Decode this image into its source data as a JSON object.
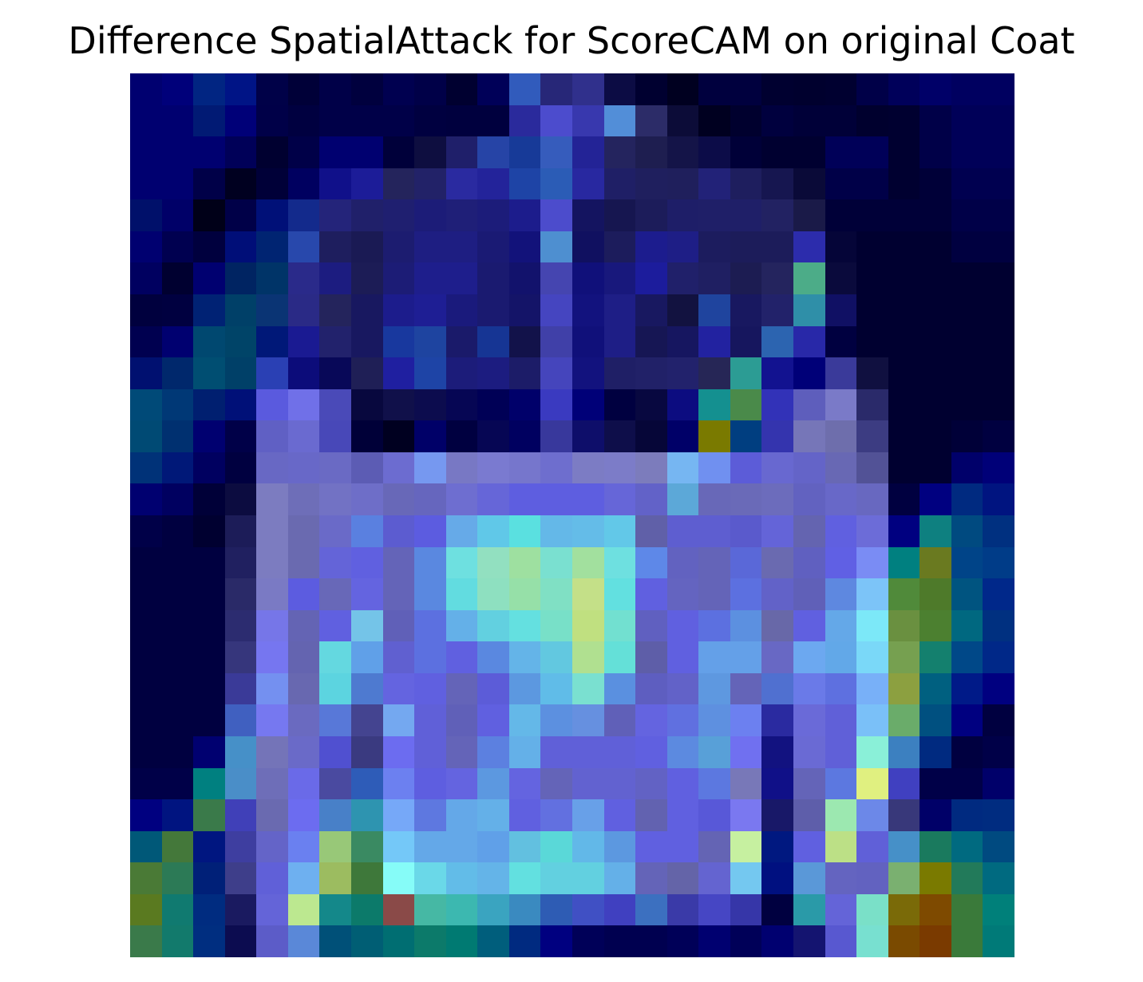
{
  "title": "Difference SpatialAttack for ScoreCAM on original Coat",
  "image": {
    "description_free": true,
    "grid_size": 28,
    "pixels": [
      [
        "#000070",
        "#00007a",
        "#012582",
        "#001486",
        "#000148",
        "#000038",
        "#000048",
        "#00003e",
        "#000050",
        "#000048",
        "#000030",
        "#000058",
        "#315bbc",
        "#272778",
        "#30308c",
        "#0c0c44",
        "#000030",
        "#000020",
        "#00003e",
        "#00003e",
        "#000030",
        "#00002e",
        "#000030",
        "#000048",
        "#00005a",
        "#000068",
        "#000060",
        "#000060"
      ],
      [
        "#000070",
        "#000070",
        "#011a74",
        "#000078",
        "#000048",
        "#000040",
        "#000048",
        "#000048",
        "#000048",
        "#000040",
        "#00003e",
        "#00003e",
        "#2a2a9c",
        "#4c4ccd",
        "#3838ae",
        "#528ed8",
        "#2c2c68",
        "#0c0c38",
        "#000020",
        "#00002e",
        "#00003e",
        "#000038",
        "#000038",
        "#00002e",
        "#000030",
        "#000048",
        "#000058",
        "#000058"
      ],
      [
        "#000070",
        "#000070",
        "#000070",
        "#000058",
        "#000030",
        "#000048",
        "#000070",
        "#000070",
        "#00003a",
        "#0e0e40",
        "#1f1f6a",
        "#2644a6",
        "#173a98",
        "#365cbc",
        "#232396",
        "#24245e",
        "#1e1e50",
        "#141448",
        "#0c0c48",
        "#000038",
        "#000030",
        "#000030",
        "#000058",
        "#000058",
        "#000030",
        "#000048",
        "#000058",
        "#000058"
      ],
      [
        "#000070",
        "#000070",
        "#000048",
        "#000020",
        "#000038",
        "#000060",
        "#10108a",
        "#1c1c98",
        "#24245c",
        "#222268",
        "#2a2aa0",
        "#23239a",
        "#1e44a6",
        "#2b5cb6",
        "#2828a0",
        "#1f1f66",
        "#1f1f5e",
        "#1f1f5c",
        "#222278",
        "#1e1e5e",
        "#161650",
        "#0a0a38",
        "#000048",
        "#000048",
        "#000030",
        "#000038",
        "#000050",
        "#000050"
      ],
      [
        "#00106a",
        "#000068",
        "#000018",
        "#000048",
        "#001078",
        "#132a8c",
        "#24247a",
        "#20206a",
        "#1f1f70",
        "#1c1c78",
        "#1f1f78",
        "#1c1c7a",
        "#1c1c8c",
        "#4c4ccc",
        "#141460",
        "#161650",
        "#1c1c5a",
        "#1e1e68",
        "#1f1f68",
        "#1f1f68",
        "#222262",
        "#1a1a48",
        "#000038",
        "#000038",
        "#000038",
        "#000038",
        "#000048",
        "#000048"
      ],
      [
        "#000070",
        "#000050",
        "#00003e",
        "#000e78",
        "#002472",
        "#2848ac",
        "#1e1e5e",
        "#1a1a54",
        "#1c1c70",
        "#1e1e82",
        "#1e1e82",
        "#1a1a74",
        "#12127a",
        "#4e8fd0",
        "#101060",
        "#1c1c5c",
        "#1c1c8e",
        "#1e1e86",
        "#1c1c5e",
        "#1c1c5a",
        "#1c1c5a",
        "#2c2cac",
        "#050538",
        "#000030",
        "#000030",
        "#000030",
        "#000040",
        "#000040"
      ],
      [
        "#000060",
        "#000030",
        "#000070",
        "#002462",
        "#003468",
        "#2a2a8a",
        "#1c1c80",
        "#1c1c56",
        "#1c1c76",
        "#1e1e8c",
        "#1e1e8c",
        "#1a1a70",
        "#12126c",
        "#4545b0",
        "#10107a",
        "#18187c",
        "#1c1c9c",
        "#20206a",
        "#1f1f62",
        "#1c1c52",
        "#24245e",
        "#4cac88",
        "#0a0a3c",
        "#000030",
        "#000030",
        "#000030",
        "#000030",
        "#000030"
      ],
      [
        "#00003e",
        "#000040",
        "#002274",
        "#004068",
        "#0a3474",
        "#2a2a86",
        "#24245c",
        "#181860",
        "#1c1c8c",
        "#1e1e94",
        "#1a1a7c",
        "#1a1a70",
        "#141468",
        "#4545c0",
        "#12127e",
        "#1e1e86",
        "#181860",
        "#121240",
        "#1f449e",
        "#181860",
        "#22226a",
        "#2f8fa8",
        "#101064",
        "#000030",
        "#000030",
        "#000030",
        "#000030",
        "#000030"
      ],
      [
        "#000050",
        "#000070",
        "#004870",
        "#004468",
        "#001878",
        "#1a1a92",
        "#22226c",
        "#181860",
        "#18389e",
        "#1e44a0",
        "#1a1a6a",
        "#163594",
        "#12124a",
        "#4040a8",
        "#10107a",
        "#1e1e86",
        "#161654",
        "#161660",
        "#2222a0",
        "#16165e",
        "#2c64b0",
        "#2828a8",
        "#000040",
        "#000030",
        "#000030",
        "#000030",
        "#000030",
        "#000030"
      ],
      [
        "#001070",
        "#00286c",
        "#004e72",
        "#004068",
        "#2a40b4",
        "#0c0c7a",
        "#080858",
        "#1f1f56",
        "#1f1fa0",
        "#1e44a6",
        "#1c1c7a",
        "#1c1c80",
        "#1c1c68",
        "#4545bc",
        "#12127e",
        "#1f1f66",
        "#212168",
        "#22226c",
        "#262656",
        "#2c9c94",
        "#121290",
        "#000078",
        "#3a3a9a",
        "#101040",
        "#000030",
        "#000030",
        "#000030",
        "#000030"
      ],
      [
        "#004a78",
        "#003876",
        "#001f70",
        "#001078",
        "#5a5ade",
        "#7070e8",
        "#4a4ab8",
        "#08083e",
        "#10104a",
        "#0c0c4e",
        "#060654",
        "#000056",
        "#00006a",
        "#3a3ac0",
        "#000078",
        "#000040",
        "#080840",
        "#0c0c80",
        "#149090",
        "#4a8a4a",
        "#3232b8",
        "#5e5ebc",
        "#7a7ac8",
        "#2a2a6a",
        "#000030",
        "#000030",
        "#000030",
        "#000030"
      ],
      [
        "#004a74",
        "#003070",
        "#000070",
        "#000048",
        "#6060c4",
        "#6a6ad0",
        "#4848b8",
        "#000038",
        "#000020",
        "#000068",
        "#000040",
        "#060654",
        "#000060",
        "#38389c",
        "#0e0e6a",
        "#0e0e4a",
        "#060638",
        "#000068",
        "#7a7a00",
        "#003e80",
        "#3434ae",
        "#7676b8",
        "#6e6eac",
        "#3c3c82",
        "#000030",
        "#000030",
        "#000038",
        "#000040"
      ],
      [
        "#003278",
        "#001878",
        "#000060",
        "#000040",
        "#6868c4",
        "#6868c8",
        "#6a6ac4",
        "#5c5cb4",
        "#6c6cd0",
        "#7698f0",
        "#7878c4",
        "#7a7ad0",
        "#7676cc",
        "#6e6ece",
        "#7c7cc4",
        "#7c7cc8",
        "#7c7cbc",
        "#76b6f2",
        "#7090f0",
        "#5c5cd8",
        "#6868d0",
        "#6464c8",
        "#6868b4",
        "#525296",
        "#000030",
        "#000030",
        "#00006a",
        "#000078"
      ],
      [
        "#000070",
        "#000060",
        "#000038",
        "#0c0c40",
        "#7c7cc0",
        "#6e6eb8",
        "#7272c4",
        "#6e6ec8",
        "#6868b8",
        "#6666be",
        "#6e6ed0",
        "#6666d8",
        "#5e5ee0",
        "#5e5ee0",
        "#5e5ee0",
        "#6666d8",
        "#6262c8",
        "#5ca8d8",
        "#6868b8",
        "#6a6ab8",
        "#6c6cbc",
        "#6262c0",
        "#6868c8",
        "#6868c0",
        "#000040",
        "#000080",
        "#002a80",
        "#001480"
      ],
      [
        "#000048",
        "#000040",
        "#000030",
        "#1c1c58",
        "#7c7cc0",
        "#6a6ab0",
        "#6a6ac8",
        "#5a80e0",
        "#5c5cd0",
        "#5c5ce0",
        "#66aae8",
        "#60c8e8",
        "#5ae0e0",
        "#64b8e8",
        "#64bce8",
        "#62c8e8",
        "#6060a8",
        "#5e5ed0",
        "#5e5ed0",
        "#5a5acc",
        "#6464d8",
        "#6464b0",
        "#6060e0",
        "#6c6cd8",
        "#000080",
        "#0e8080",
        "#004a80",
        "#003080"
      ],
      [
        "#000040",
        "#000040",
        "#000040",
        "#202060",
        "#7c7cc0",
        "#6a6ab0",
        "#6464d8",
        "#6060e0",
        "#6464b8",
        "#5a88e0",
        "#6ee0e0",
        "#92e0c0",
        "#9ee0a0",
        "#7ae0d0",
        "#a2e09e",
        "#6ee0e0",
        "#5e88e8",
        "#6262c0",
        "#6464b8",
        "#5a68d8",
        "#6a6ab0",
        "#6060c0",
        "#6060e4",
        "#7a8cf4",
        "#008080",
        "#6a7a20",
        "#004488",
        "#003c88"
      ],
      [
        "#000040",
        "#000040",
        "#000040",
        "#2a2a68",
        "#7a7ac4",
        "#5c5ce0",
        "#6868b8",
        "#6464e0",
        "#6464b8",
        "#5a88e0",
        "#62dce0",
        "#8ee0c0",
        "#96e0a8",
        "#80e0c4",
        "#c4e088",
        "#62e0e0",
        "#6060e0",
        "#6464c0",
        "#6464b8",
        "#5c70e0",
        "#6262c8",
        "#6060b8",
        "#5e88e0",
        "#7cc4f8",
        "#508a3a",
        "#4e7a2a",
        "#005480",
        "#00288a"
      ],
      [
        "#000040",
        "#000040",
        "#000040",
        "#2c2c70",
        "#7676e8",
        "#6464b4",
        "#6060e0",
        "#74c4e8",
        "#6060b8",
        "#5c70e0",
        "#64b0e8",
        "#62d0e0",
        "#64e0e0",
        "#78e0c8",
        "#c0e080",
        "#72e0d0",
        "#6060c0",
        "#6060e0",
        "#5c70e0",
        "#5c90e0",
        "#6868a8",
        "#6060e0",
        "#64a8e8",
        "#7ce8f8",
        "#6a9040",
        "#4c8030",
        "#006880",
        "#003080"
      ],
      [
        "#000040",
        "#000040",
        "#000040",
        "#36367c",
        "#7676f0",
        "#6464b0",
        "#64d8e0",
        "#60a0e8",
        "#6060d0",
        "#5c70e0",
        "#6060e0",
        "#5a88e0",
        "#64b4e8",
        "#62c8e0",
        "#b0e090",
        "#64e0d8",
        "#5e5ea8",
        "#6060e0",
        "#64a0e8",
        "#64a0e8",
        "#6868c4",
        "#6ca8f0",
        "#62a8e8",
        "#7ad8f8",
        "#76a050",
        "#14806e",
        "#004888",
        "#002888"
      ],
      [
        "#000040",
        "#000040",
        "#000040",
        "#3a3a98",
        "#7490f0",
        "#6868b0",
        "#5cd4e0",
        "#4e7ad0",
        "#6464e0",
        "#6060e0",
        "#6464b8",
        "#5c5cd8",
        "#5c98e0",
        "#60bce8",
        "#7ae0d0",
        "#5a90e0",
        "#5e5ec0",
        "#6262c8",
        "#5e98e0",
        "#6464b8",
        "#5070d0",
        "#6a7ae8",
        "#5e70e0",
        "#78b0f8",
        "#8ca040",
        "#006080",
        "#001a88",
        "#000080"
      ],
      [
        "#000040",
        "#000040",
        "#000040",
        "#4060c0",
        "#7678f0",
        "#6a6ac0",
        "#5878d8",
        "#444490",
        "#74a8f0",
        "#6060d8",
        "#6060b8",
        "#6060e0",
        "#64b8e8",
        "#5c90e0",
        "#6690e0",
        "#6060b8",
        "#6464e0",
        "#6070e0",
        "#5e90e0",
        "#6c80f0",
        "#2a2aa0",
        "#6a6ad8",
        "#6060d8",
        "#7ac0f8",
        "#6aac6a",
        "#005080",
        "#000080",
        "#000040"
      ],
      [
        "#000040",
        "#000040",
        "#000070",
        "#4690c8",
        "#7474b8",
        "#6a6ac8",
        "#5050d0",
        "#3a3a80",
        "#6c6cf0",
        "#6060d8",
        "#6464b8",
        "#5c80e0",
        "#64b0e8",
        "#6060d8",
        "#6060d8",
        "#6060d8",
        "#6060e0",
        "#5c8ae0",
        "#58a0d8",
        "#7070f0",
        "#121280",
        "#6a6ad4",
        "#6060d8",
        "#8af0d8",
        "#3c80c0",
        "#002a80",
        "#000040",
        "#000048"
      ],
      [
        "#000048",
        "#000048",
        "#008080",
        "#4a8ec8",
        "#6e6eb8",
        "#6a6ae8",
        "#4a4aa0",
        "#2e5cb8",
        "#6c80f0",
        "#5e5ee0",
        "#6464e0",
        "#5c98e0",
        "#6464e0",
        "#6464b8",
        "#6262d0",
        "#6262d0",
        "#6262c4",
        "#6060e0",
        "#5c78e0",
        "#7878b8",
        "#101088",
        "#6464b8",
        "#5c78e0",
        "#e0f080",
        "#4040c0",
        "#000048",
        "#000048",
        "#00006a"
      ],
      [
        "#000080",
        "#001480",
        "#3a7a4a",
        "#4040b8",
        "#6a6ab0",
        "#6c6cf0",
        "#4880c8",
        "#2e94b0",
        "#76a8f8",
        "#5e78e0",
        "#64a8e8",
        "#64b0e8",
        "#6060e0",
        "#6270e0",
        "#68a0e8",
        "#6060e0",
        "#6262b0",
        "#6060e0",
        "#5858d8",
        "#7a78f0",
        "#181868",
        "#5e5eaa",
        "#9ce8b0",
        "#6c88e8",
        "#38387a",
        "#000068",
        "#002a80",
        "#002c80"
      ],
      [
        "#005878",
        "#44783a",
        "#001680",
        "#3e3ea0",
        "#6464c8",
        "#6a80f0",
        "#98c878",
        "#3a8a62",
        "#74c8f8",
        "#64a8e8",
        "#64a8e8",
        "#60a0e8",
        "#62c0e0",
        "#5ad8d8",
        "#62b8e8",
        "#5c98e0",
        "#6060e0",
        "#6060e0",
        "#6464b4",
        "#c6f0a0",
        "#001880",
        "#6060e0",
        "#bce086",
        "#6060d8",
        "#4690c8",
        "#1a7a5e",
        "#006a80",
        "#004a80"
      ],
      [
        "#4a7a36",
        "#2c7a56",
        "#002078",
        "#3e3e8a",
        "#6060d8",
        "#6eb0f0",
        "#9cbc60",
        "#3e783a",
        "#86fcf8",
        "#6ad8e8",
        "#62bce8",
        "#64b4e8",
        "#62e0e0",
        "#62d0e0",
        "#62d0e0",
        "#64b0e8",
        "#6464b8",
        "#6464a8",
        "#6464d0",
        "#74c8f0",
        "#001080",
        "#5a98d8",
        "#6464c0",
        "#6262c0",
        "#7ab070",
        "#7a7a00",
        "#227a5a",
        "#006a80"
      ],
      [
        "#5a7a20",
        "#107a70",
        "#002c80",
        "#1a1a60",
        "#6464d8",
        "#bce890",
        "#14888a",
        "#0c7a6a",
        "#8a4a48",
        "#46b8a4",
        "#3cb8b0",
        "#3aa4c0",
        "#3a8ac0",
        "#2e5cb4",
        "#4050c4",
        "#4040c0",
        "#3c70c0",
        "#3a3aa8",
        "#4646c4",
        "#3636a8",
        "#000040",
        "#2a9aa8",
        "#6464d8",
        "#7ae0c8",
        "#7a6a08",
        "#7e4a00",
        "#3a7a3a",
        "#00807a"
      ],
      [
        "#3a7a4a",
        "#127a6c",
        "#002e80",
        "#0c0c50",
        "#5c5cc8",
        "#5a88d8",
        "#005078",
        "#005e74",
        "#006e72",
        "#0c7a6a",
        "#007a72",
        "#005e7c",
        "#002a80",
        "#000080",
        "#000058",
        "#000050",
        "#000050",
        "#000058",
        "#000070",
        "#000058",
        "#000070",
        "#141470",
        "#5858d0",
        "#78e0d0",
        "#7a4a00",
        "#7a3a00",
        "#3a7a3a",
        "#007a78"
      ]
    ]
  }
}
